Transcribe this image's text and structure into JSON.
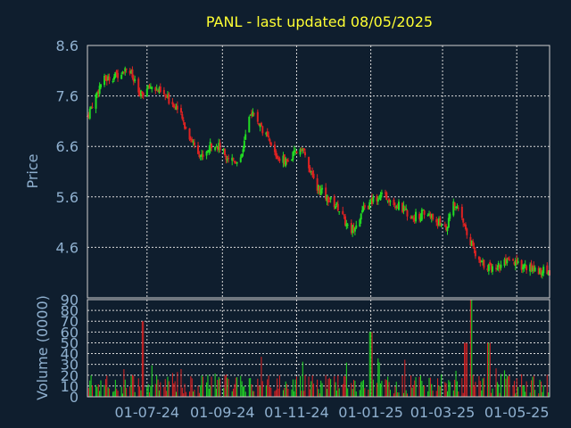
{
  "chart_data": {
    "type": "candlestick+volume",
    "title": "PANL - last updated 08/05/2025",
    "colors": {
      "background": "#0f1e2e",
      "up": "#22dd22",
      "down": "#dd2222",
      "title": "#ffff33",
      "axis_text": "#8fb0cf",
      "grid": "#d9d9d9"
    },
    "price_panel": {
      "ylabel": "Price",
      "ylim": [
        3.6,
        8.6
      ],
      "yticks": [
        "8.6",
        "7.6",
        "6.6",
        "5.6",
        "4.6"
      ]
    },
    "volume_panel": {
      "ylabel": "Volume (0000)",
      "ylim": [
        0,
        90
      ],
      "yticks": [
        "90",
        "80",
        "70",
        "60",
        "50",
        "40",
        "30",
        "20",
        "10",
        "0"
      ]
    },
    "x_axis": {
      "start": "2024-05-13",
      "end": "2025-05-28",
      "tick_labels": [
        "01-07-24",
        "01-09-24",
        "01-11-24",
        "01-01-25",
        "01-03-25",
        "01-05-25"
      ],
      "tick_dates": [
        "2024-07-01",
        "2024-09-01",
        "2024-11-01",
        "2025-01-01",
        "2025-03-01",
        "2025-05-01"
      ]
    },
    "close_trend": [
      {
        "date": "2024-05-13",
        "close": 7.2
      },
      {
        "date": "2024-05-25",
        "close": 7.9
      },
      {
        "date": "2024-06-05",
        "close": 8.0
      },
      {
        "date": "2024-06-15",
        "close": 8.2
      },
      {
        "date": "2024-06-25",
        "close": 7.6
      },
      {
        "date": "2024-07-05",
        "close": 7.8
      },
      {
        "date": "2024-07-15",
        "close": 7.6
      },
      {
        "date": "2024-07-25",
        "close": 7.4
      },
      {
        "date": "2024-08-05",
        "close": 6.8
      },
      {
        "date": "2024-08-15",
        "close": 6.4
      },
      {
        "date": "2024-08-25",
        "close": 6.7
      },
      {
        "date": "2024-09-05",
        "close": 6.4
      },
      {
        "date": "2024-09-15",
        "close": 6.3
      },
      {
        "date": "2024-09-25",
        "close": 7.3
      },
      {
        "date": "2024-10-05",
        "close": 6.9
      },
      {
        "date": "2024-10-15",
        "close": 6.4
      },
      {
        "date": "2024-10-25",
        "close": 6.3
      },
      {
        "date": "2024-11-05",
        "close": 6.6
      },
      {
        "date": "2024-11-15",
        "close": 5.9
      },
      {
        "date": "2024-11-25",
        "close": 5.6
      },
      {
        "date": "2024-12-05",
        "close": 5.4
      },
      {
        "date": "2024-12-15",
        "close": 4.9
      },
      {
        "date": "2024-12-25",
        "close": 5.3
      },
      {
        "date": "2025-01-05",
        "close": 5.6
      },
      {
        "date": "2025-01-15",
        "close": 5.6
      },
      {
        "date": "2025-01-25",
        "close": 5.4
      },
      {
        "date": "2025-02-05",
        "close": 5.2
      },
      {
        "date": "2025-02-15",
        "close": 5.3
      },
      {
        "date": "2025-02-25",
        "close": 5.1
      },
      {
        "date": "2025-03-05",
        "close": 5.0
      },
      {
        "date": "2025-03-10",
        "close": 5.5
      },
      {
        "date": "2025-03-20",
        "close": 5.0
      },
      {
        "date": "2025-03-30",
        "close": 4.3
      },
      {
        "date": "2025-04-10",
        "close": 4.2
      },
      {
        "date": "2025-04-25",
        "close": 4.3
      },
      {
        "date": "2025-05-10",
        "close": 4.2
      },
      {
        "date": "2025-05-28",
        "close": 4.1
      }
    ],
    "volume_spikes": [
      {
        "date": "2024-06-28",
        "volume": 70
      },
      {
        "date": "2025-01-01",
        "volume": 60
      },
      {
        "date": "2025-03-20",
        "volume": 50
      },
      {
        "date": "2025-03-24",
        "volume": 90
      },
      {
        "date": "2025-04-08",
        "volume": 50
      }
    ]
  }
}
